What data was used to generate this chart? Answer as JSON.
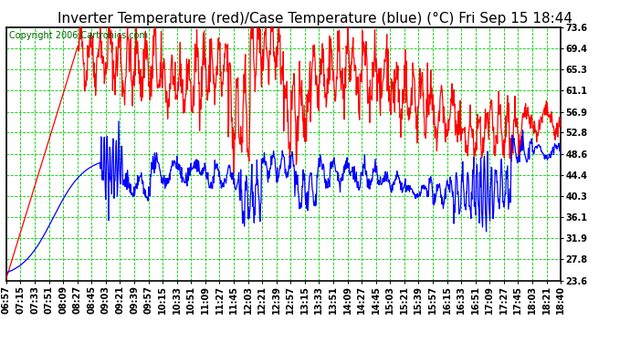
{
  "title": "Inverter Temperature (red)/Case Temperature (blue) (°C) Fri Sep 15 18:44",
  "copyright": "Copyright 2006 Cartronics.com",
  "plot_bg_color": "#ffffff",
  "fig_bg_color": "#ffffff",
  "grid_color": "#00cc00",
  "ytick_labels": [
    "73.6",
    "69.4",
    "65.3",
    "61.1",
    "56.9",
    "52.8",
    "48.6",
    "44.4",
    "40.3",
    "36.1",
    "31.9",
    "27.8",
    "23.6"
  ],
  "ytick_values": [
    73.6,
    69.4,
    65.3,
    61.1,
    56.9,
    52.8,
    48.6,
    44.4,
    40.3,
    36.1,
    31.9,
    27.8,
    23.6
  ],
  "ymin": 23.6,
  "ymax": 73.6,
  "xtick_labels": [
    "06:57",
    "07:15",
    "07:33",
    "07:51",
    "08:09",
    "08:27",
    "08:45",
    "09:03",
    "09:21",
    "09:39",
    "09:57",
    "10:15",
    "10:33",
    "10:51",
    "11:09",
    "11:27",
    "11:45",
    "12:03",
    "12:21",
    "12:39",
    "12:57",
    "13:15",
    "13:33",
    "13:51",
    "14:09",
    "14:27",
    "14:45",
    "15:03",
    "15:21",
    "15:39",
    "15:57",
    "16:15",
    "16:33",
    "16:51",
    "17:09",
    "17:27",
    "17:45",
    "18:03",
    "18:21",
    "18:40"
  ],
  "red_line_color": "#ff0000",
  "blue_line_color": "#0000ff",
  "border_color": "#000000",
  "title_fontsize": 11,
  "tick_fontsize": 7,
  "copyright_fontsize": 7
}
